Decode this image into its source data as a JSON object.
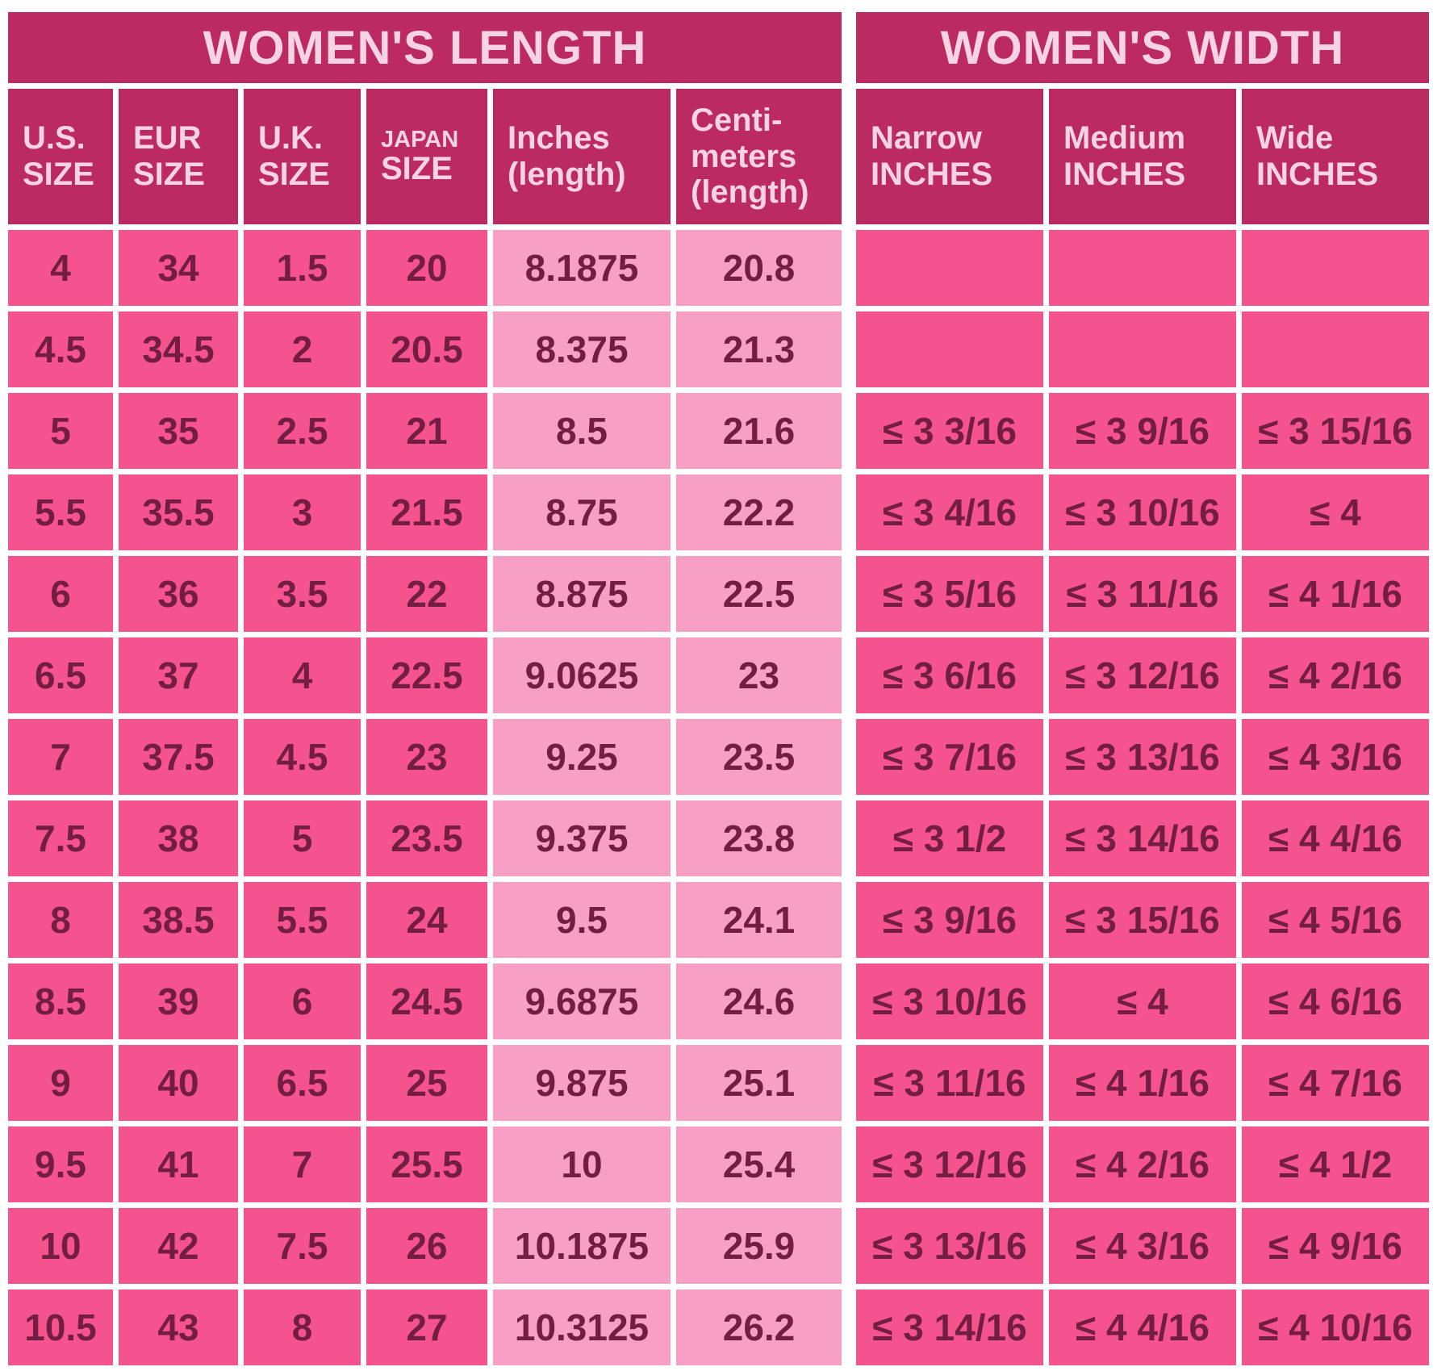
{
  "colors": {
    "header_background": "#bb2a63",
    "header_text": "#f7d3e4",
    "cell_hot_pink": "#f5538d",
    "cell_light_pink": "#f79fc4",
    "cell_text": "#731d43",
    "page_background": "#ffffff"
  },
  "length_table": {
    "title": "WOMEN'S LENGTH",
    "headers": {
      "us": "U.S.\nSIZE",
      "eur": "EUR\nSIZE",
      "uk": "U.K.\nSIZE",
      "japan_top": "JAPAN",
      "japan_bottom": "SIZE",
      "inches": "Inches\n(length)",
      "cm": "Centi-\nmeters\n(length)"
    }
  },
  "width_table": {
    "title": "WOMEN'S WIDTH",
    "headers": {
      "narrow": "Narrow\nINCHES",
      "medium": "Medium\nINCHES",
      "wide": "Wide\nINCHES"
    }
  },
  "chart_data": [
    {
      "type": "table",
      "title": "WOMEN'S LENGTH",
      "columns": [
        "U.S. SIZE",
        "EUR SIZE",
        "U.K. SIZE",
        "JAPAN SIZE",
        "Inches (length)",
        "Centi-meters (length)"
      ],
      "rows": [
        [
          "4",
          "34",
          "1.5",
          "20",
          "8.1875",
          "20.8"
        ],
        [
          "4.5",
          "34.5",
          "2",
          "20.5",
          "8.375",
          "21.3"
        ],
        [
          "5",
          "35",
          "2.5",
          "21",
          "8.5",
          "21.6"
        ],
        [
          "5.5",
          "35.5",
          "3",
          "21.5",
          "8.75",
          "22.2"
        ],
        [
          "6",
          "36",
          "3.5",
          "22",
          "8.875",
          "22.5"
        ],
        [
          "6.5",
          "37",
          "4",
          "22.5",
          "9.0625",
          "23"
        ],
        [
          "7",
          "37.5",
          "4.5",
          "23",
          "9.25",
          "23.5"
        ],
        [
          "7.5",
          "38",
          "5",
          "23.5",
          "9.375",
          "23.8"
        ],
        [
          "8",
          "38.5",
          "5.5",
          "24",
          "9.5",
          "24.1"
        ],
        [
          "8.5",
          "39",
          "6",
          "24.5",
          "9.6875",
          "24.6"
        ],
        [
          "9",
          "40",
          "6.5",
          "25",
          "9.875",
          "25.1"
        ],
        [
          "9.5",
          "41",
          "7",
          "25.5",
          "10",
          "25.4"
        ],
        [
          "10",
          "42",
          "7.5",
          "26",
          "10.1875",
          "25.9"
        ],
        [
          "10.5",
          "43",
          "8",
          "27",
          "10.3125",
          "26.2"
        ]
      ]
    },
    {
      "type": "table",
      "title": "WOMEN'S WIDTH",
      "columns": [
        "Narrow INCHES",
        "Medium INCHES",
        "Wide INCHES"
      ],
      "rows": [
        [
          "",
          "",
          ""
        ],
        [
          "",
          "",
          ""
        ],
        [
          "≤ 3 3/16",
          "≤ 3 9/16",
          "≤ 3 15/16"
        ],
        [
          "≤ 3 4/16",
          "≤ 3 10/16",
          "≤ 4"
        ],
        [
          "≤ 3 5/16",
          "≤ 3 11/16",
          "≤ 4 1/16"
        ],
        [
          "≤ 3 6/16",
          "≤ 3 12/16",
          "≤ 4 2/16"
        ],
        [
          "≤ 3 7/16",
          "≤ 3 13/16",
          "≤ 4 3/16"
        ],
        [
          "≤ 3 1/2",
          "≤ 3 14/16",
          "≤ 4 4/16"
        ],
        [
          "≤ 3 9/16",
          "≤ 3 15/16",
          "≤ 4 5/16"
        ],
        [
          "≤ 3 10/16",
          "≤ 4",
          "≤ 4 6/16"
        ],
        [
          "≤ 3 11/16",
          "≤ 4 1/16",
          "≤ 4 7/16"
        ],
        [
          "≤ 3 12/16",
          "≤ 4 2/16",
          "≤ 4 1/2"
        ],
        [
          "≤ 3 13/16",
          "≤ 4 3/16",
          "≤ 4 9/16"
        ],
        [
          "≤ 3 14/16",
          "≤ 4 4/16",
          "≤ 4 10/16"
        ]
      ]
    }
  ]
}
